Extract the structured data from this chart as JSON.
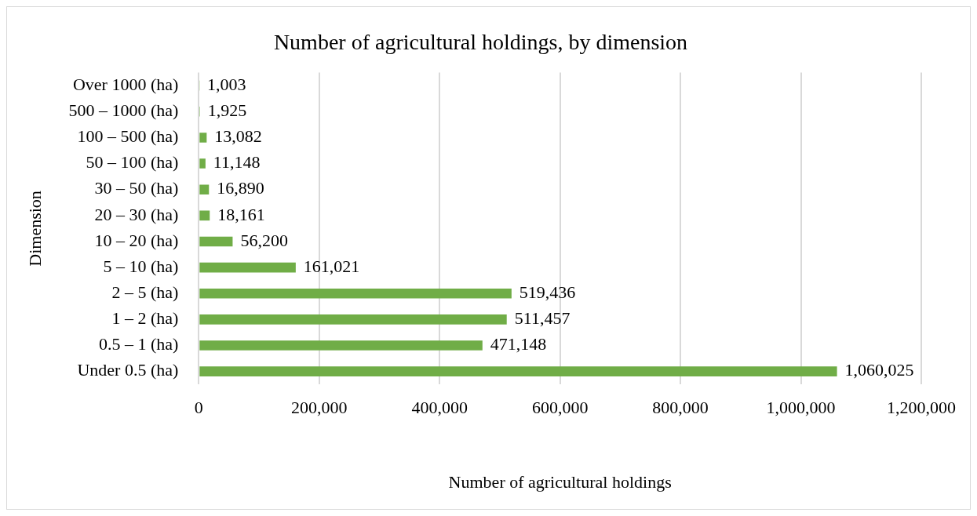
{
  "chart_data": {
    "type": "bar",
    "orientation": "horizontal",
    "title": "Number of agricultural holdings, by dimension",
    "xlabel": "Number of agricultural holdings",
    "ylabel": "Dimension",
    "categories": [
      "Over 1000 (ha)",
      "500 – 1000 (ha)",
      "100 – 500 (ha)",
      "50 – 100 (ha)",
      "30 – 50 (ha)",
      "20 – 30 (ha)",
      "10 – 20 (ha)",
      "5 – 10 (ha)",
      "2 – 5 (ha)",
      "1 – 2 (ha)",
      "0.5 – 1 (ha)",
      "Under 0.5 (ha)"
    ],
    "values": [
      1003,
      1925,
      13082,
      11148,
      16890,
      18161,
      56200,
      161021,
      519436,
      511457,
      471148,
      1060025
    ],
    "value_labels": [
      "1,003",
      "1,925",
      "13,082",
      "11,148",
      "16,890",
      "18,161",
      "56,200",
      "161,021",
      "519,436",
      "511,457",
      "471,148",
      "1,060,025"
    ],
    "color": "#70ad47",
    "grid": "x",
    "legend": false,
    "xlim": [
      0,
      1200000
    ],
    "xticks": [
      0,
      {
        "value": 200000,
        "label": "200,000"
      },
      {
        "value": 400000,
        "label": "400,000"
      },
      {
        "value": 600000,
        "label": "600,000"
      },
      {
        "value": 800000,
        "label": "800,000"
      },
      {
        "value": 1000000,
        "label": "1,000,000"
      },
      {
        "value": 1200000,
        "label": "1,200,000"
      }
    ]
  }
}
